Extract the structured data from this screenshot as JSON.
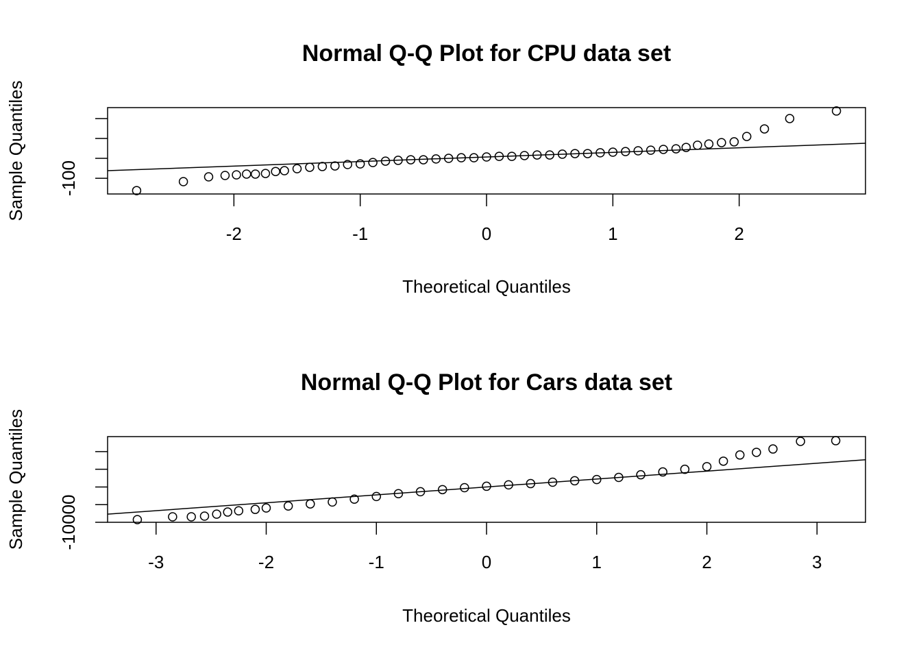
{
  "chart_data": [
    {
      "type": "scatter",
      "title": "Normal Q-Q Plot for CPU data set",
      "xlabel": "Theoretical Quantiles",
      "ylabel": "Sample Quantiles",
      "x": [
        -2.77,
        -2.4,
        -2.2,
        -2.07,
        -1.98,
        -1.9,
        -1.83,
        -1.75,
        -1.67,
        -1.6,
        -1.5,
        -1.4,
        -1.3,
        -1.2,
        -1.1,
        -1.0,
        -0.9,
        -0.8,
        -0.7,
        -0.6,
        -0.5,
        -0.4,
        -0.3,
        -0.2,
        -0.1,
        0,
        0.1,
        0.2,
        0.3,
        0.4,
        0.5,
        0.6,
        0.7,
        0.8,
        0.9,
        1.0,
        1.1,
        1.2,
        1.3,
        1.4,
        1.5,
        1.58,
        1.67,
        1.76,
        1.86,
        1.96,
        2.06,
        2.2,
        2.4,
        2.77
      ],
      "values": [
        -162,
        -117,
        -93,
        -86,
        -83,
        -79,
        -79,
        -76,
        -66,
        -62,
        -52,
        -45,
        -41,
        -38,
        -31,
        -28,
        -21,
        -14,
        -10,
        -7,
        -7,
        -3,
        0,
        3,
        3,
        7,
        10,
        10,
        14,
        17,
        17,
        21,
        24,
        24,
        28,
        31,
        34,
        38,
        41,
        45,
        48,
        55,
        66,
        72,
        79,
        83,
        110,
        148,
        200,
        238
      ],
      "line": {
        "x": [
          -3,
          3
        ],
        "y": [
          -62,
          76
        ]
      },
      "xlim": [
        -3,
        3
      ],
      "ylim": [
        -179,
        255
      ],
      "xticks": [
        -2,
        -1,
        0,
        1,
        2
      ],
      "yticks": [
        -100,
        {
          "value": 0,
          "label": null
        },
        {
          "value": 100,
          "label": null
        },
        {
          "value": 200,
          "label": null
        }
      ]
    },
    {
      "type": "scatter",
      "title": "Normal Q-Q Plot for Cars data set",
      "xlabel": "Theoretical Quantiles",
      "ylabel": "Sample Quantiles",
      "x": [
        -3.17,
        -2.85,
        -2.68,
        -2.56,
        -2.45,
        -2.35,
        -2.25,
        -2.1,
        -2.0,
        -1.8,
        -1.6,
        -1.4,
        -1.2,
        -1.0,
        -0.8,
        -0.6,
        -0.4,
        -0.2,
        0,
        0.2,
        0.4,
        0.6,
        0.8,
        1.0,
        1.2,
        1.4,
        1.6,
        1.8,
        2.0,
        2.15,
        2.3,
        2.45,
        2.6,
        2.85,
        3.17
      ],
      "values": [
        -8500,
        -6900,
        -6900,
        -6500,
        -5400,
        -4200,
        -3500,
        -2700,
        -1900,
        -800,
        400,
        1500,
        3100,
        4600,
        6200,
        7300,
        8500,
        9600,
        10400,
        11200,
        11900,
        12700,
        13500,
        14200,
        15400,
        16900,
        18500,
        20000,
        21500,
        24600,
        28100,
        29600,
        31500,
        35800,
        36200
      ],
      "line": {
        "x": [
          -3.44,
          3.44
        ],
        "y": [
          -5400,
          25400
        ]
      },
      "xlim": [
        -3.44,
        3.44
      ],
      "ylim": [
        -10000,
        38500
      ],
      "xticks": [
        -3,
        -2,
        -1,
        0,
        1,
        2,
        3
      ],
      "yticks": [
        -10000,
        {
          "value": 0,
          "label": null
        },
        {
          "value": 10000,
          "label": null
        },
        {
          "value": 20000,
          "label": null
        },
        {
          "value": 30000,
          "label": null
        }
      ]
    }
  ]
}
